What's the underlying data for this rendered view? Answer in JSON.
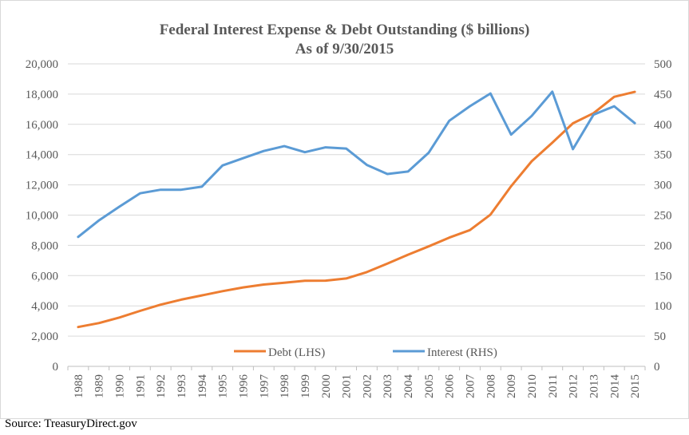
{
  "title": "Federal Interest Expense & Debt Outstanding ($ billions)",
  "subtitle": "As of 9/30/2015",
  "source": "Source: TreasuryDirect.gov",
  "colors": {
    "debt": "#ED7D31",
    "interest": "#5B9BD5",
    "grid": "#d9d9d9",
    "text": "#595959"
  },
  "chart_data": {
    "type": "line",
    "title": "Federal Interest Expense & Debt Outstanding ($ billions)",
    "subtitle": "As of 9/30/2015",
    "categories": [
      "1988",
      "1989",
      "1990",
      "1991",
      "1992",
      "1993",
      "1994",
      "1995",
      "1996",
      "1997",
      "1998",
      "1999",
      "2000",
      "2001",
      "2002",
      "2003",
      "2004",
      "2005",
      "2006",
      "2007",
      "2008",
      "2009",
      "2010",
      "2011",
      "2012",
      "2013",
      "2014",
      "2015"
    ],
    "y_left": {
      "ylim": [
        0,
        20000
      ],
      "ticks": [
        "0",
        "2,000",
        "4,000",
        "6,000",
        "8,000",
        "10,000",
        "12,000",
        "14,000",
        "16,000",
        "18,000",
        "20,000"
      ],
      "tick_values": [
        0,
        2000,
        4000,
        6000,
        8000,
        10000,
        12000,
        14000,
        16000,
        18000,
        20000
      ]
    },
    "y_right": {
      "ylim": [
        0,
        500
      ],
      "ticks": [
        "0",
        "50",
        "100",
        "150",
        "200",
        "250",
        "300",
        "350",
        "400",
        "450",
        "500"
      ],
      "tick_values": [
        0,
        50,
        100,
        150,
        200,
        250,
        300,
        350,
        400,
        450,
        500
      ]
    },
    "series": [
      {
        "name": "Debt (LHS)",
        "axis": "left",
        "color": "#ED7D31",
        "values": [
          2600,
          2860,
          3230,
          3670,
          4080,
          4410,
          4690,
          4970,
          5220,
          5410,
          5530,
          5660,
          5670,
          5810,
          6230,
          6790,
          7380,
          7930,
          8510,
          9010,
          10030,
          11910,
          13560,
          14790,
          16070,
          16740,
          17820,
          18150
        ]
      },
      {
        "name": "Interest (RHS)",
        "axis": "right",
        "color": "#5B9BD5",
        "values": [
          214,
          241,
          264,
          286,
          292,
          292,
          297,
          332,
          344,
          356,
          364,
          354,
          362,
          360,
          333,
          318,
          322,
          353,
          406,
          430,
          451,
          383,
          414,
          454,
          359,
          416,
          430,
          402
        ]
      }
    ],
    "legend": "bottom-inside",
    "grid": true
  }
}
